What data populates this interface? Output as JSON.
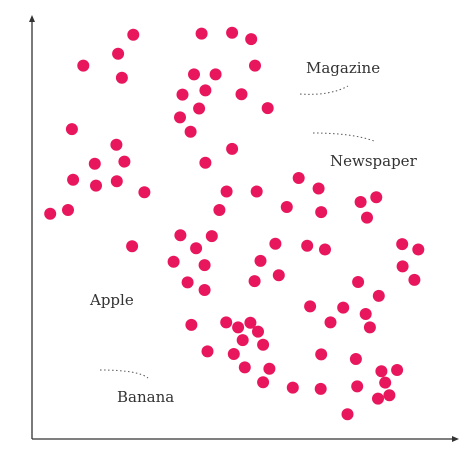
{
  "chart_data": {
    "type": "scatter",
    "title": "",
    "xlabel": "",
    "ylabel": "",
    "xlim": [
      0,
      100
    ],
    "ylim": [
      0,
      100
    ],
    "grid": false,
    "legend": "none",
    "point_color": "#e8175d",
    "annotations": [
      {
        "text": "Magazine",
        "target": [
          63.5,
          84.0
        ]
      },
      {
        "text": "Newspaper",
        "target": [
          66.8,
          74.5
        ]
      },
      {
        "text": "Apple",
        "target": [
          10.6,
          28.7
        ]
      },
      {
        "text": "Banana",
        "target": [
          13.7,
          19.8
        ]
      }
    ],
    "points": [
      [
        23.9,
        96.0
      ],
      [
        40.0,
        96.3
      ],
      [
        47.2,
        96.5
      ],
      [
        51.7,
        95.0
      ],
      [
        20.3,
        91.5
      ],
      [
        12.1,
        88.7
      ],
      [
        21.2,
        85.8
      ],
      [
        38.2,
        86.6
      ],
      [
        43.3,
        86.6
      ],
      [
        52.6,
        88.7
      ],
      [
        35.5,
        81.8
      ],
      [
        40.9,
        82.8
      ],
      [
        49.4,
        81.9
      ],
      [
        39.4,
        78.5
      ],
      [
        34.9,
        76.4
      ],
      [
        55.6,
        78.6
      ],
      [
        37.4,
        73.0
      ],
      [
        9.4,
        73.6
      ],
      [
        19.9,
        69.9
      ],
      [
        14.8,
        65.4
      ],
      [
        21.8,
        65.9
      ],
      [
        47.2,
        68.9
      ],
      [
        40.9,
        65.6
      ],
      [
        9.7,
        61.6
      ],
      [
        15.1,
        60.2
      ],
      [
        20.0,
        61.2
      ],
      [
        26.5,
        58.6
      ],
      [
        45.9,
        58.8
      ],
      [
        53.0,
        58.8
      ],
      [
        62.9,
        62.0
      ],
      [
        67.6,
        59.5
      ],
      [
        77.5,
        56.3
      ],
      [
        81.2,
        57.4
      ],
      [
        4.3,
        53.5
      ],
      [
        8.5,
        54.4
      ],
      [
        44.2,
        54.4
      ],
      [
        60.1,
        55.1
      ],
      [
        68.2,
        53.9
      ],
      [
        79.0,
        52.6
      ],
      [
        35.0,
        48.4
      ],
      [
        42.4,
        48.2
      ],
      [
        23.6,
        45.8
      ],
      [
        38.7,
        45.3
      ],
      [
        57.4,
        46.4
      ],
      [
        64.9,
        45.9
      ],
      [
        69.1,
        45.0
      ],
      [
        87.3,
        46.3
      ],
      [
        91.1,
        45.0
      ],
      [
        33.4,
        42.1
      ],
      [
        40.7,
        41.3
      ],
      [
        53.9,
        42.3
      ],
      [
        87.4,
        41.0
      ],
      [
        36.7,
        37.2
      ],
      [
        58.2,
        38.9
      ],
      [
        52.5,
        37.5
      ],
      [
        40.7,
        35.4
      ],
      [
        76.9,
        37.3
      ],
      [
        90.2,
        37.8
      ],
      [
        81.8,
        34.0
      ],
      [
        73.4,
        31.2
      ],
      [
        65.6,
        31.5
      ],
      [
        78.7,
        29.7
      ],
      [
        37.6,
        27.1
      ],
      [
        45.8,
        27.7
      ],
      [
        51.5,
        27.6
      ],
      [
        48.6,
        26.5
      ],
      [
        53.3,
        25.5
      ],
      [
        70.4,
        27.7
      ],
      [
        79.7,
        26.5
      ],
      [
        49.7,
        23.5
      ],
      [
        54.5,
        22.4
      ],
      [
        41.4,
        20.8
      ],
      [
        47.6,
        20.2
      ],
      [
        68.2,
        20.1
      ],
      [
        76.4,
        19.0
      ],
      [
        50.2,
        17.0
      ],
      [
        56.0,
        16.7
      ],
      [
        82.4,
        16.1
      ],
      [
        86.1,
        16.4
      ],
      [
        61.5,
        12.2
      ],
      [
        54.5,
        13.5
      ],
      [
        76.7,
        12.5
      ],
      [
        83.3,
        13.4
      ],
      [
        68.1,
        11.9
      ],
      [
        84.3,
        10.4
      ],
      [
        81.6,
        9.6
      ],
      [
        74.4,
        5.9
      ]
    ]
  }
}
